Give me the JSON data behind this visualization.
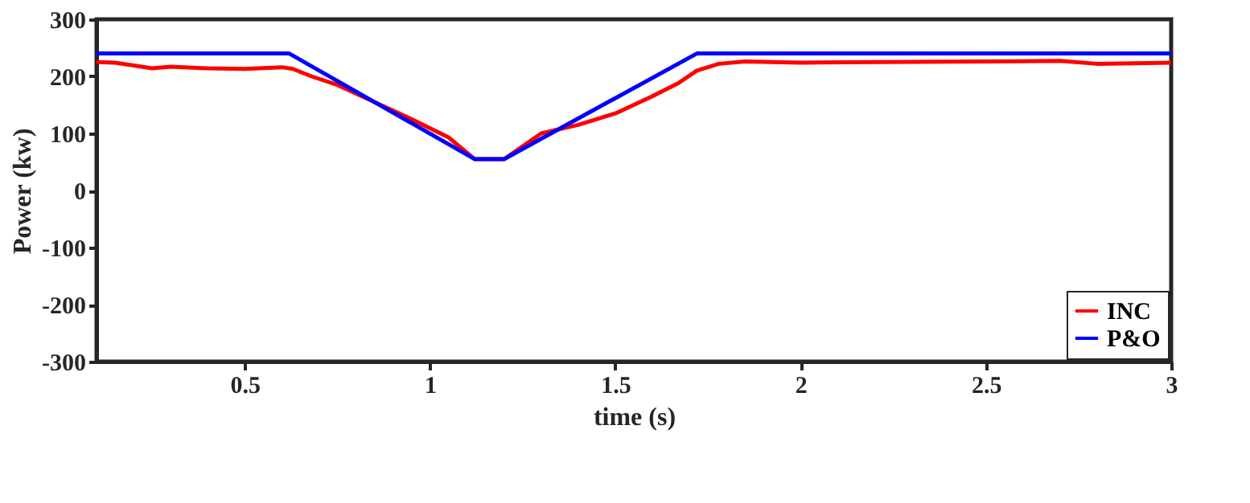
{
  "chart_data": {
    "type": "line",
    "xlabel": "time (s)",
    "ylabel": "Power (kw)",
    "xlim": [
      0.1,
      3
    ],
    "ylim": [
      -300,
      300
    ],
    "xticks": [
      0.5,
      1,
      1.5,
      2,
      2.5,
      3
    ],
    "yticks": [
      -300,
      -200,
      -100,
      0,
      100,
      200,
      300
    ],
    "grid": false,
    "legend": "bottom right",
    "line_style": "solid",
    "marker": "none",
    "series": [
      {
        "name": "INC",
        "color": "#ff0000",
        "x": [
          0.1,
          0.15,
          0.25,
          0.3,
          0.4,
          0.5,
          0.6,
          0.63,
          0.68,
          0.75,
          0.85,
          0.95,
          1.05,
          1.12,
          1.2,
          1.3,
          1.4,
          1.5,
          1.6,
          1.67,
          1.72,
          1.78,
          1.85,
          2.0,
          2.2,
          2.5,
          2.7,
          2.8,
          3.0
        ],
        "values": [
          225,
          224,
          214,
          217,
          214,
          213,
          216,
          213,
          200,
          185,
          155,
          125,
          93,
          55,
          55,
          100,
          115,
          135,
          165,
          188,
          210,
          222,
          226,
          224,
          225,
          226,
          227,
          222,
          224
        ]
      },
      {
        "name": "P&O",
        "color": "#0000ff",
        "x": [
          0.1,
          0.62,
          1.12,
          1.2,
          1.72,
          3.0
        ],
        "values": [
          240,
          240,
          55,
          55,
          240,
          240
        ]
      }
    ]
  }
}
